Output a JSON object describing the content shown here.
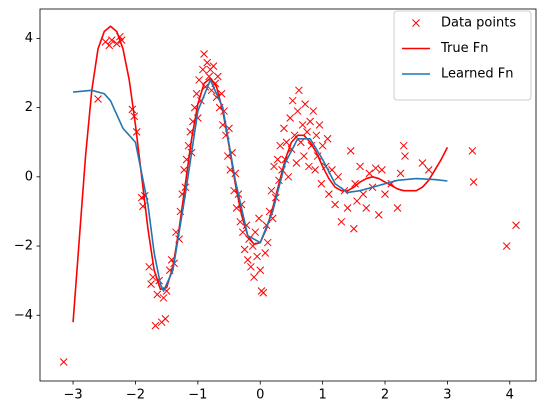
{
  "chart_data": {
    "type": "line",
    "xlim": [
      -3.53,
      4.42
    ],
    "ylim": [
      -5.9,
      4.85
    ],
    "xticks": [
      {
        "value": -3,
        "label": "−3"
      },
      {
        "value": -2,
        "label": "−2"
      },
      {
        "value": -1,
        "label": "−1"
      },
      0,
      1,
      2,
      3,
      4
    ],
    "yticks": [
      {
        "value": -4,
        "label": "−4"
      },
      {
        "value": -2,
        "label": "−2"
      },
      0,
      2,
      4
    ],
    "grid": false,
    "legend": "upper right",
    "series": [
      {
        "name": "Data points",
        "color": "#ff0000",
        "style": "markers",
        "x": [
          -3.15,
          -2.6,
          -2.48,
          -2.42,
          -2.38,
          -2.3,
          -2.25,
          -2.22,
          -2.05,
          -2.02,
          -1.98,
          -1.9,
          -1.88,
          -1.85,
          -1.78,
          -1.75,
          -1.72,
          -1.68,
          -1.65,
          -1.62,
          -1.58,
          -1.55,
          -1.52,
          -1.5,
          -1.45,
          -1.42,
          -1.38,
          -1.35,
          -1.3,
          -1.28,
          -1.25,
          -1.22,
          -1.2,
          -1.18,
          -1.15,
          -1.12,
          -1.1,
          -1.08,
          -1.05,
          -1.02,
          -1.0,
          -0.98,
          -0.95,
          -0.92,
          -0.9,
          -0.88,
          -0.85,
          -0.82,
          -0.8,
          -0.78,
          -0.75,
          -0.72,
          -0.7,
          -0.68,
          -0.65,
          -0.62,
          -0.6,
          -0.58,
          -0.55,
          -0.52,
          -0.5,
          -0.48,
          -0.45,
          -0.42,
          -0.4,
          -0.38,
          -0.35,
          -0.32,
          -0.3,
          -0.28,
          -0.25,
          -0.22,
          -0.2,
          -0.18,
          -0.15,
          -0.12,
          -0.1,
          -0.08,
          -0.05,
          -0.02,
          0.0,
          0.02,
          0.05,
          0.08,
          0.1,
          0.12,
          0.15,
          0.18,
          0.2,
          0.22,
          0.25,
          0.28,
          0.3,
          0.32,
          0.35,
          0.38,
          0.4,
          0.42,
          0.45,
          0.48,
          0.5,
          0.52,
          0.55,
          0.58,
          0.6,
          0.62,
          0.65,
          0.68,
          0.7,
          0.72,
          0.75,
          0.78,
          0.8,
          0.82,
          0.85,
          0.88,
          0.9,
          0.92,
          0.95,
          0.98,
          1.0,
          1.05,
          1.08,
          1.1,
          1.15,
          1.2,
          1.25,
          1.3,
          1.35,
          1.4,
          1.45,
          1.5,
          1.52,
          1.55,
          1.6,
          1.65,
          1.7,
          1.75,
          1.8,
          1.85,
          1.9,
          1.95,
          2.0,
          2.1,
          2.2,
          2.25,
          2.3,
          2.32,
          2.6,
          2.7,
          3.4,
          3.42,
          3.95,
          4.1
        ],
        "values": [
          -5.35,
          2.25,
          3.9,
          3.8,
          3.95,
          3.85,
          4.05,
          3.95,
          1.95,
          1.75,
          1.3,
          -0.6,
          -0.85,
          -0.55,
          -2.6,
          -3.1,
          -2.9,
          -4.3,
          -3.4,
          -3.0,
          -4.2,
          -3.5,
          -4.1,
          -3.3,
          -2.7,
          -2.4,
          -2.5,
          -1.6,
          -1.8,
          -1.0,
          -0.5,
          0.2,
          -0.3,
          0.5,
          0.9,
          1.3,
          0.7,
          1.6,
          2.0,
          2.4,
          1.7,
          2.8,
          2.2,
          3.1,
          3.55,
          2.6,
          3.3,
          2.9,
          3.1,
          2.5,
          3.2,
          2.7,
          2.3,
          2.9,
          2.0,
          2.4,
          1.5,
          1.9,
          1.2,
          0.6,
          1.4,
          0.2,
          0.7,
          -0.4,
          0.1,
          -0.9,
          -0.5,
          -1.3,
          -0.8,
          -1.6,
          -2.1,
          -1.4,
          -2.4,
          -1.8,
          -2.6,
          -2.0,
          -2.9,
          -1.6,
          -2.3,
          -1.2,
          -2.7,
          -3.3,
          -3.35,
          -2.2,
          -1.4,
          -1.9,
          -1.0,
          -0.4,
          -1.2,
          0.3,
          -0.6,
          0.5,
          -0.1,
          0.9,
          0.2,
          1.4,
          0.5,
          1.0,
          0.0,
          1.7,
          0.8,
          2.2,
          1.2,
          0.4,
          1.9,
          2.5,
          1.0,
          1.5,
          0.6,
          2.1,
          1.3,
          0.3,
          1.6,
          0.9,
          1.9,
          0.2,
          1.2,
          0.6,
          1.5,
          -0.2,
          0.9,
          0.3,
          1.1,
          -0.5,
          0.2,
          -0.8,
          0.0,
          -1.3,
          -0.4,
          -0.9,
          0.75,
          -1.5,
          -0.2,
          -0.7,
          0.3,
          -0.5,
          -0.9,
          0.1,
          -0.3,
          0.25,
          -1.1,
          0.2,
          -0.5,
          -0.2,
          -0.9,
          0.1,
          0.9,
          0.6,
          0.4,
          0.2,
          0.75,
          -0.15,
          -2.0,
          -1.4
        ]
      },
      {
        "name": "True Fn",
        "color": "#ff0000",
        "style": "line",
        "x": [
          -3.0,
          -2.9,
          -2.8,
          -2.7,
          -2.6,
          -2.5,
          -2.4,
          -2.3,
          -2.2,
          -2.1,
          -2.0,
          -1.9,
          -1.8,
          -1.7,
          -1.6,
          -1.5,
          -1.4,
          -1.3,
          -1.2,
          -1.1,
          -1.0,
          -0.9,
          -0.8,
          -0.7,
          -0.6,
          -0.5,
          -0.4,
          -0.3,
          -0.2,
          -0.1,
          0.0,
          0.1,
          0.2,
          0.3,
          0.4,
          0.5,
          0.6,
          0.7,
          0.8,
          0.9,
          1.0,
          1.1,
          1.2,
          1.3,
          1.4,
          1.5,
          1.6,
          1.7,
          1.8,
          1.9,
          2.0,
          2.1,
          2.2,
          2.3,
          2.4,
          2.5,
          2.6,
          2.7,
          2.8,
          2.9,
          3.0
        ],
        "values": [
          -4.2,
          -1.8,
          0.6,
          2.5,
          3.7,
          4.2,
          4.35,
          4.2,
          3.7,
          2.8,
          1.5,
          0.0,
          -1.5,
          -2.7,
          -3.25,
          -3.2,
          -2.6,
          -1.5,
          -0.2,
          1.1,
          2.1,
          2.7,
          2.85,
          2.6,
          1.9,
          0.9,
          -0.2,
          -1.1,
          -1.7,
          -1.95,
          -1.9,
          -1.5,
          -0.9,
          -0.2,
          0.5,
          1.0,
          1.2,
          1.2,
          1.0,
          0.7,
          0.3,
          -0.05,
          -0.3,
          -0.4,
          -0.4,
          -0.3,
          -0.15,
          -0.05,
          0.0,
          -0.05,
          -0.15,
          -0.25,
          -0.35,
          -0.4,
          -0.4,
          -0.4,
          -0.3,
          -0.1,
          0.2,
          0.5,
          0.85
        ]
      },
      {
        "name": "Learned Fn",
        "color": "#1f77b4",
        "style": "line",
        "x": [
          -3.0,
          -2.7,
          -2.5,
          -2.4,
          -2.3,
          -2.2,
          -2.0,
          -1.8,
          -1.7,
          -1.6,
          -1.55,
          -1.4,
          -1.2,
          -1.0,
          -0.8,
          -0.6,
          -0.4,
          -0.2,
          0.0,
          0.2,
          0.4,
          0.6,
          0.8,
          1.0,
          1.2,
          1.4,
          1.6,
          1.8,
          2.0,
          2.2,
          2.5,
          2.8,
          3.0
        ],
        "values": [
          2.45,
          2.5,
          2.4,
          2.2,
          1.8,
          1.4,
          1.0,
          -0.8,
          -2.2,
          -3.1,
          -3.3,
          -2.7,
          -0.5,
          1.9,
          2.8,
          2.0,
          -0.1,
          -1.7,
          -1.9,
          -1.0,
          0.4,
          1.1,
          1.1,
          0.5,
          -0.2,
          -0.45,
          -0.4,
          -0.3,
          -0.2,
          -0.1,
          -0.05,
          -0.08,
          -0.12
        ]
      }
    ]
  }
}
